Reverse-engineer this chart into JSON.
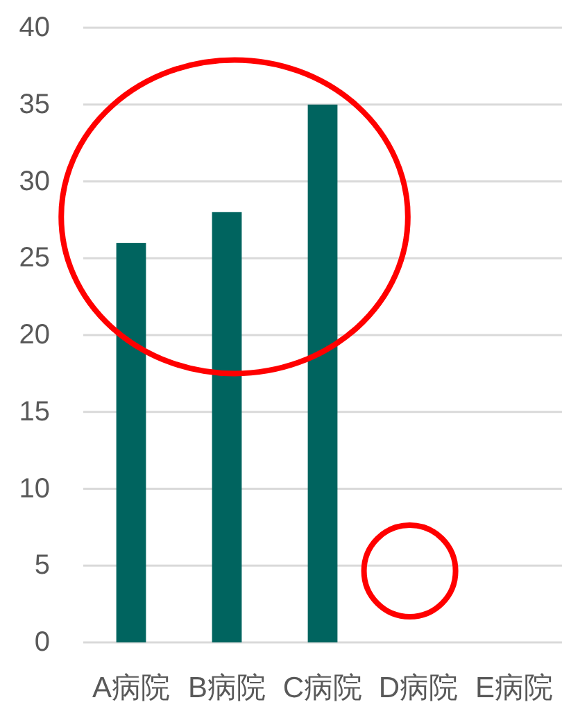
{
  "chart_data": {
    "type": "bar",
    "categories": [
      "A病院",
      "B病院",
      "C病院",
      "D病院",
      "E病院"
    ],
    "values": [
      26,
      28,
      35,
      null,
      null
    ],
    "color": "#00645f",
    "ylim": [
      0,
      40
    ],
    "yticks": [
      0,
      5,
      10,
      15,
      20,
      25,
      30,
      35,
      40
    ],
    "grid": "y"
  }
}
